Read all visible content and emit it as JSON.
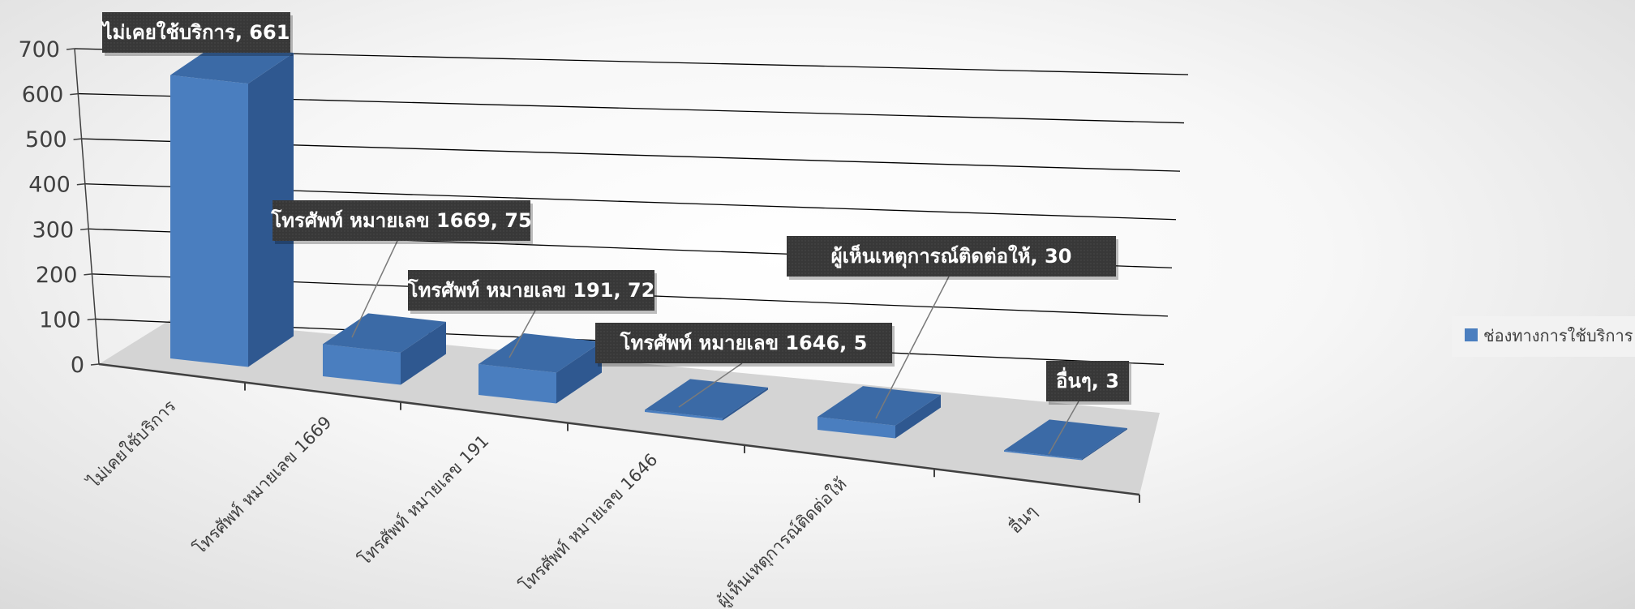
{
  "chart_data": {
    "type": "bar",
    "categories": [
      "ไม่เคยใช้บริการ",
      "โทรศัพท์ หมายเลข 1669",
      "โทรศัพท์ หมายเลข 191",
      "โทรศัพท์ หมายเลข 1646",
      "ผู้เห็นเหตุการณ์ติดต่อให้",
      "อื่นๆ"
    ],
    "series": [
      {
        "name": "ช่องทางการใช้บริการ",
        "values": [
          661,
          75,
          72,
          5,
          30,
          3
        ]
      }
    ],
    "data_labels": [
      "ไม่เคยใช้บริการ, 661",
      "โทรศัพท์ หมายเลข 1669, 75",
      "โทรศัพท์ หมายเลข 191, 72",
      "โทรศัพท์ หมายเลข 1646, 5",
      "ผู้เห็นเหตุการณ์ติดต่อให้, 30",
      "อื่นๆ, 3"
    ],
    "y_ticks": [
      "0",
      "100",
      "200",
      "300",
      "400",
      "500",
      "600",
      "700"
    ],
    "ylim": [
      0,
      700
    ],
    "grid": true,
    "legend_position": "right",
    "style": "3d-column",
    "colors": {
      "bar_front": "#4a7ebf",
      "bar_side": "#2f5890",
      "bar_top": "#3b6aa6",
      "floor": "#d4d4d4",
      "label_bg": "#333333"
    }
  }
}
